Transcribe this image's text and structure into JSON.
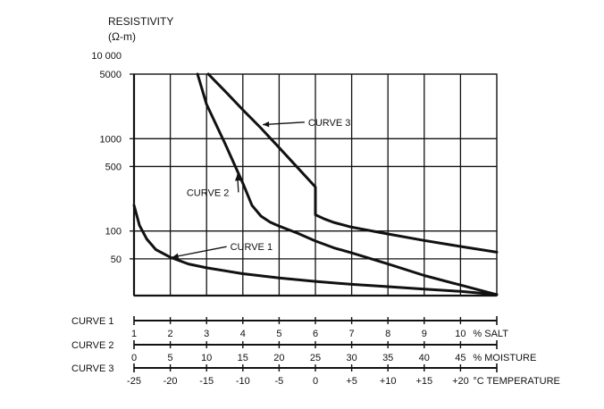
{
  "chart_data": {
    "type": "line",
    "title": "",
    "ylabel": [
      "RESISTIVITY",
      "(Ω-m)"
    ],
    "yscale": "log",
    "ylim": [
      20,
      5000
    ],
    "yticks": [
      {
        "value": 10000,
        "label": "10 000"
      },
      {
        "value": 5000,
        "label": "5000"
      },
      {
        "value": 1000,
        "label": "1000"
      },
      {
        "value": 500,
        "label": "500"
      },
      {
        "value": 100,
        "label": "100"
      },
      {
        "value": 50,
        "label": "50"
      }
    ],
    "x_position_range": [
      0,
      10
    ],
    "grid": true,
    "series": [
      {
        "name": "CURVE 1",
        "x": [
          0,
          0.15,
          0.35,
          0.6,
          1,
          1.5,
          2,
          3,
          4,
          5,
          6,
          7,
          8,
          9,
          10
        ],
        "y": [
          190,
          115,
          82,
          63,
          52,
          44,
          40,
          34.5,
          31,
          28.5,
          26.5,
          25,
          23.5,
          22.2,
          20.5
        ]
      },
      {
        "name": "CURVE 2",
        "x": [
          1.75,
          2,
          2.5,
          3,
          3.25,
          3.5,
          3.75,
          4,
          4.5,
          5,
          5.5,
          6,
          7,
          8,
          9,
          10
        ],
        "y": [
          5000,
          2350,
          900,
          330,
          190,
          145,
          125,
          113,
          95,
          78,
          66,
          58,
          44,
          33,
          26,
          20.5
        ]
      },
      {
        "name": "CURVE 3",
        "x": [
          2.05,
          2.5,
          3,
          3.5,
          4,
          4.5,
          5,
          5,
          5.25,
          5.5,
          6,
          7,
          8,
          9,
          10
        ],
        "y": [
          5000,
          3300,
          2050,
          1300,
          800,
          490,
          300,
          150,
          135,
          124,
          110,
          93,
          79,
          68,
          59
        ]
      }
    ],
    "annotations": [
      {
        "text": "CURVE 1",
        "x": 2.65,
        "y": 62
      },
      {
        "text": "CURVE 2",
        "x": 1.45,
        "y": 240
      },
      {
        "text": "CURVE 3",
        "x": 4.8,
        "y": 1380
      }
    ],
    "x_scales": [
      {
        "name": "CURVE 1",
        "unit": "% SALT",
        "labels": [
          "1",
          "2",
          "3",
          "4",
          "5",
          "6",
          "7",
          "8",
          "9",
          "10"
        ],
        "positions": [
          0,
          1,
          2,
          3,
          4,
          5,
          6,
          7,
          8,
          9
        ]
      },
      {
        "name": "CURVE 2",
        "unit": "% MOISTURE",
        "labels": [
          "0",
          "5",
          "10",
          "15",
          "20",
          "25",
          "30",
          "35",
          "40",
          "45"
        ],
        "positions": [
          0,
          1,
          2,
          3,
          4,
          5,
          6,
          7,
          8,
          9
        ]
      },
      {
        "name": "CURVE 3",
        "unit": "°C TEMPERATURE",
        "labels": [
          "-25",
          "-20",
          "-15",
          "-10",
          "-5",
          "0",
          "+5",
          "+10",
          "+15",
          "+20"
        ],
        "positions": [
          0,
          1,
          2,
          3,
          4,
          5,
          6,
          7,
          8,
          9
        ]
      }
    ]
  }
}
